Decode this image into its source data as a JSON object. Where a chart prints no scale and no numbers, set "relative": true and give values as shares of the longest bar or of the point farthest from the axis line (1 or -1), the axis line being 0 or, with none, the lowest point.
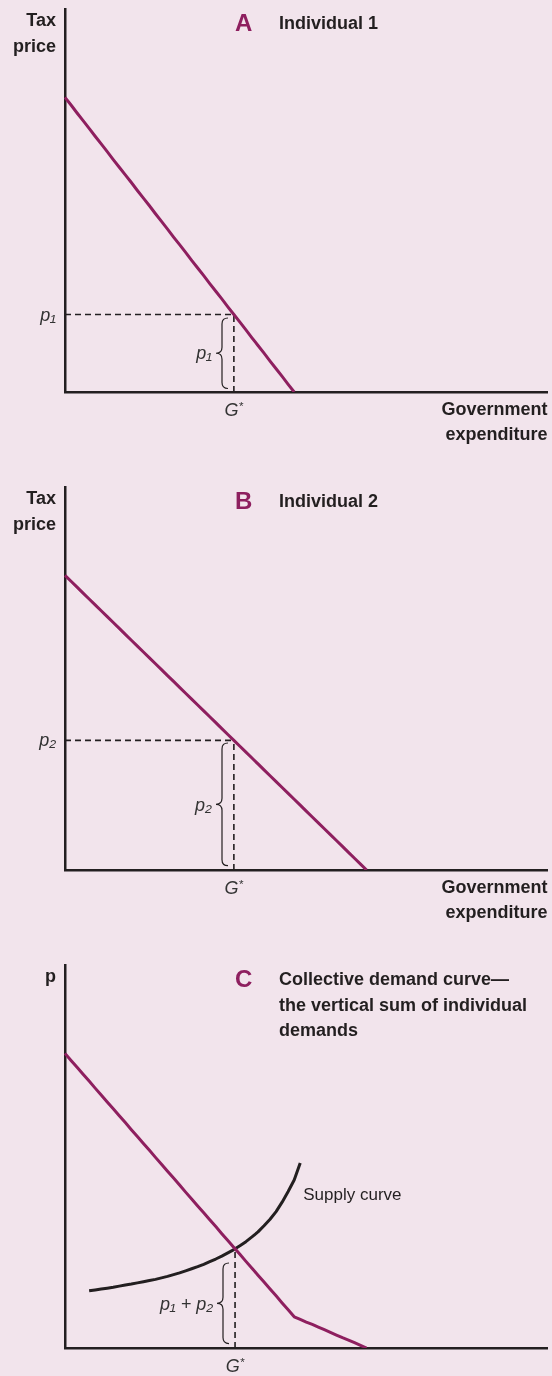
{
  "chart_data": [
    {
      "type": "line",
      "title": "A",
      "subtitle": "Individual 1",
      "xlabel": "Government expenditure",
      "ylabel": "Tax price",
      "relative": true,
      "marker": "none",
      "categories": [
        null,
        null,
        null,
        null,
        null,
        null,
        null,
        null,
        null,
        null,
        null,
        null,
        null,
        null,
        null,
        null,
        null,
        null,
        null,
        null,
        null,
        null,
        null,
        null,
        null,
        null,
        null,
        null,
        null,
        null,
        null,
        null,
        null,
        null,
        null,
        null,
        null,
        null,
        null,
        null,
        null,
        null,
        null,
        null,
        null,
        null,
        null,
        null,
        null,
        null,
        null,
        null,
        null,
        null,
        null,
        null,
        null,
        null,
        null,
        null,
        null,
        null,
        null,
        null,
        null,
        null,
        null,
        null,
        null,
        null,
        null,
        null,
        null,
        null,
        null,
        null,
        null,
        null,
        null,
        null,
        null
      ],
      "series": [
        {
          "color": "#8e1f5f",
          "values": [
            1,
            0.974,
            0.947,
            0.921,
            0.895,
            0.868,
            0.842,
            0.816,
            0.789,
            0.763,
            0.737,
            0.711,
            0.684,
            0.658,
            0.632,
            0.605,
            0.579,
            0.553,
            0.526,
            0.5,
            0.474,
            0.447,
            0.421,
            0.395,
            0.368,
            0.342,
            0.316,
            0.289,
            0.263,
            0.237,
            0.211,
            0.184,
            0.158,
            0.132,
            0.105,
            0.079,
            0.053,
            0.026,
            0,
            null,
            null,
            null,
            null,
            null,
            null,
            null,
            null,
            null,
            null,
            null,
            null,
            null,
            null,
            null,
            null,
            null,
            null,
            null,
            null,
            null,
            null,
            null,
            null,
            null,
            null,
            null,
            null,
            null,
            null,
            null,
            null,
            null,
            null,
            null,
            null,
            null,
            null,
            null,
            null,
            null,
            null
          ]
        }
      ],
      "ref_lines": [
        {
          "axis": "y",
          "value": 0.263,
          "label": "p₁",
          "line_style": "dashed"
        }
      ],
      "annotations": [
        "p₁",
        "G$^{*}$"
      ]
    },
    {
      "type": "line",
      "title": "B",
      "subtitle": "Individual 2",
      "xlabel": "Government expenditure",
      "ylabel": "Tax price",
      "relative": true,
      "marker": "none",
      "categories": [
        null,
        null,
        null,
        null,
        null,
        null,
        null,
        null,
        null,
        null,
        null,
        null,
        null,
        null,
        null,
        null,
        null,
        null,
        null,
        null,
        null,
        null,
        null,
        null,
        null,
        null,
        null,
        null,
        null,
        null,
        null,
        null,
        null,
        null,
        null,
        null,
        null,
        null,
        null,
        null,
        null,
        null,
        null,
        null,
        null,
        null,
        null,
        null,
        null,
        null,
        null,
        null,
        null,
        null,
        null,
        null,
        null,
        null,
        null,
        null,
        null,
        null,
        null,
        null,
        null,
        null,
        null,
        null,
        null,
        null,
        null,
        null,
        null,
        null,
        null,
        null,
        null,
        null,
        null,
        null,
        null
      ],
      "series": [
        {
          "color": "#8e1f5f",
          "values": [
            1,
            0.98,
            0.96,
            0.94,
            0.92,
            0.9,
            0.88,
            0.86,
            0.84,
            0.82,
            0.8,
            0.78,
            0.76,
            0.74,
            0.72,
            0.7,
            0.68,
            0.66,
            0.64,
            0.62,
            0.6,
            0.58,
            0.56,
            0.54,
            0.52,
            0.5,
            0.48,
            0.46,
            0.44,
            0.42,
            0.4,
            0.38,
            0.36,
            0.34,
            0.32,
            0.3,
            0.28,
            0.26,
            0.24,
            0.22,
            0.2,
            0.18,
            0.16,
            0.14,
            0.12,
            0.1,
            0.08,
            0.06,
            0.04,
            0.02,
            0,
            null,
            null,
            null,
            null,
            null,
            null,
            null,
            null,
            null,
            null,
            null,
            null,
            null,
            null,
            null,
            null,
            null,
            null,
            null,
            null,
            null,
            null,
            null,
            null,
            null,
            null,
            null,
            null,
            null,
            null
          ]
        }
      ],
      "ref_lines": [
        {
          "axis": "y",
          "value": 0.44,
          "label": "p₂",
          "line_style": "dashed"
        }
      ],
      "annotations": [
        "p₂",
        "G$^{*}$"
      ]
    },
    {
      "type": "line",
      "title": "C",
      "subtitle": "Collective demand curve—the vertical sum of individual demands",
      "ylabel": "p",
      "relative": true,
      "marker": "none",
      "categories": [
        null,
        null,
        null,
        null,
        null,
        null,
        null,
        null,
        null,
        null,
        null,
        null,
        null,
        null,
        null,
        null,
        null,
        null,
        null,
        null,
        null,
        null,
        null,
        null,
        null,
        null,
        null,
        null,
        null,
        null,
        null,
        null,
        null,
        null,
        null,
        null,
        null,
        null,
        null,
        null,
        null,
        null,
        null,
        null,
        null,
        null,
        null,
        null,
        null,
        null,
        null,
        null,
        null,
        null,
        null,
        null,
        null,
        null,
        null,
        null,
        null,
        null,
        null,
        null,
        null,
        null,
        null,
        null,
        null,
        null,
        null,
        null,
        null,
        null,
        null,
        null,
        null,
        null,
        null,
        null,
        null
      ],
      "series": [
        {
          "color": "#8e1f5f",
          "values": [
            1,
            0.976,
            0.953,
            0.929,
            0.906,
            0.882,
            0.859,
            0.835,
            0.812,
            0.788,
            0.765,
            0.741,
            0.718,
            0.694,
            0.671,
            0.647,
            0.624,
            0.6,
            0.577,
            0.553,
            0.529,
            0.506,
            0.482,
            0.459,
            0.435,
            0.412,
            0.388,
            0.365,
            0.341,
            0.318,
            0.294,
            0.271,
            0.247,
            0.224,
            0.2,
            0.177,
            0.153,
            0.13,
            0.106,
            0.097,
            0.088,
            0.08,
            0.071,
            0.062,
            0.053,
            0.044,
            0.035,
            0.027,
            0.018,
            0.009,
            0,
            null,
            null,
            null,
            null,
            null,
            null,
            null,
            null,
            null,
            null,
            null,
            null,
            null,
            null,
            null,
            null,
            null,
            null,
            null,
            null,
            null,
            null,
            null,
            null,
            null,
            null,
            null,
            null,
            null,
            null
          ]
        },
        {
          "name": "Supply curve",
          "color": "#231f20",
          "values": [
            null,
            null,
            null,
            null,
            0.194,
            0.197,
            0.2,
            0.203,
            0.206,
            0.21,
            0.214,
            0.217,
            0.221,
            0.225,
            0.229,
            0.233,
            0.238,
            0.243,
            0.249,
            0.255,
            0.262,
            0.269,
            0.276,
            0.284,
            0.293,
            0.302,
            0.312,
            0.323,
            0.334,
            0.347,
            0.361,
            0.377,
            0.394,
            0.415,
            0.437,
            0.463,
            0.495,
            0.531,
            0.57,
            0.628,
            null,
            null,
            null,
            null,
            null,
            null,
            null,
            null,
            null,
            null,
            null,
            null,
            null,
            null,
            null,
            null,
            null,
            null,
            null,
            null,
            null,
            null,
            null,
            null,
            null,
            null,
            null,
            null,
            null,
            null,
            null,
            null,
            null,
            null,
            null,
            null,
            null,
            null,
            null,
            null,
            null
          ]
        }
      ],
      "annotations": [
        "p₁ + p₂",
        "G$^{*}$"
      ]
    }
  ]
}
